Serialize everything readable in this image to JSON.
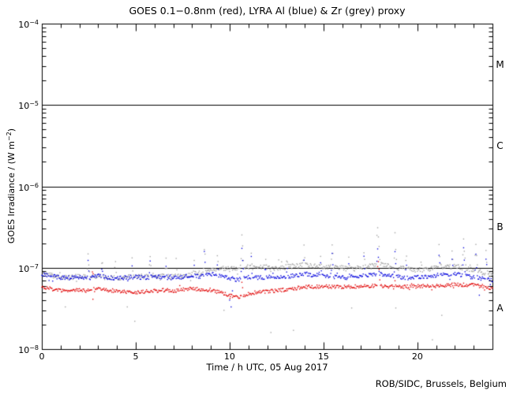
{
  "footer": "ROB/SIDC, Brussels, Belgium",
  "chart_data": {
    "type": "scatter",
    "title": "GOES 0.1−0.8nm (red), LYRA Al (blue) & Zr (grey) proxy",
    "xlabel": "Time / h UTC, 05 Aug 2017",
    "ylabel": {
      "prefix": "GOES Irradiance / (W m",
      "sup": "−2",
      "suffix": ")"
    },
    "background": "#ffffff",
    "axis_color": "#000000",
    "grid": false,
    "legend": "encoded in title (red/blue/grey)",
    "x_range": [
      0,
      24
    ],
    "x_major_ticks": [
      0,
      5,
      10,
      15,
      20
    ],
    "x_minor_step": 1,
    "y_log_range": [
      -8,
      -4
    ],
    "y_ticks": [
      {
        "base": "10",
        "exp_label": "−4",
        "exp": -4
      },
      {
        "base": "10",
        "exp_label": "−5",
        "exp": -5
      },
      {
        "base": "10",
        "exp_label": "−6",
        "exp": -6
      },
      {
        "base": "10",
        "exp_label": "−7",
        "exp": -7
      },
      {
        "base": "10",
        "exp_label": "−8",
        "exp": -8
      }
    ],
    "hlines": [
      1e-05,
      1e-06,
      1e-07
    ],
    "class_labels": [
      {
        "label": "M",
        "value": 3.16e-05
      },
      {
        "label": "C",
        "value": 3.16e-06
      },
      {
        "label": "B",
        "value": 3.16e-07
      },
      {
        "label": "A",
        "value": 3.16e-08
      }
    ],
    "value_scale": 1e-08,
    "points_per_hour": 26,
    "seed": 42,
    "series": [
      {
        "name": "GOES 0.1−0.8nm",
        "color": "#e10000",
        "noise_dex": 0.022,
        "trend": [
          [
            0,
            5.7
          ],
          [
            0.5,
            5.5
          ],
          [
            1,
            5.3
          ],
          [
            1.5,
            5.2
          ],
          [
            2,
            5.3
          ],
          [
            2.5,
            5.2
          ],
          [
            3,
            5.4
          ],
          [
            3.5,
            5.3
          ],
          [
            4,
            5.2
          ],
          [
            4.5,
            5.0
          ],
          [
            5,
            4.9
          ],
          [
            5.5,
            5.1
          ],
          [
            6,
            5.2
          ],
          [
            6.5,
            5.3
          ],
          [
            7,
            5.2
          ],
          [
            7.5,
            5.4
          ],
          [
            8,
            5.5
          ],
          [
            8.5,
            5.4
          ],
          [
            9,
            5.2
          ],
          [
            9.5,
            5.0
          ],
          [
            10,
            4.6
          ],
          [
            10.3,
            4.3
          ],
          [
            10.7,
            4.5
          ],
          [
            11,
            4.8
          ],
          [
            11.5,
            5.0
          ],
          [
            12,
            5.1
          ],
          [
            12.5,
            5.2
          ],
          [
            13,
            5.4
          ],
          [
            13.5,
            5.6
          ],
          [
            14,
            5.8
          ],
          [
            15,
            5.9
          ],
          [
            16,
            5.8
          ],
          [
            17,
            5.9
          ],
          [
            18,
            6.0
          ],
          [
            19,
            5.8
          ],
          [
            20,
            5.9
          ],
          [
            21,
            6.0
          ],
          [
            22,
            6.2
          ],
          [
            23,
            6.1
          ],
          [
            23.5,
            5.9
          ],
          [
            24,
            5.6
          ]
        ],
        "spikes": [
          [
            2.7,
            10.5
          ],
          [
            10.65,
            7.5
          ],
          [
            17.9,
            15
          ],
          [
            18.8,
            8
          ],
          [
            22.45,
            7.5
          ],
          [
            23.1,
            7.2
          ]
        ]
      },
      {
        "name": "LYRA Al proxy",
        "color": "#0000dd",
        "noise_dex": 0.025,
        "trend": [
          [
            0,
            8.2
          ],
          [
            0.5,
            7.9
          ],
          [
            1,
            7.6
          ],
          [
            1.5,
            7.5
          ],
          [
            2,
            7.7
          ],
          [
            2.5,
            7.5
          ],
          [
            3,
            7.9
          ],
          [
            3.5,
            7.6
          ],
          [
            4,
            7.4
          ],
          [
            4.5,
            7.6
          ],
          [
            5,
            7.7
          ],
          [
            5.5,
            7.5
          ],
          [
            6,
            7.8
          ],
          [
            6.5,
            7.6
          ],
          [
            7,
            7.5
          ],
          [
            7.5,
            7.7
          ],
          [
            8,
            8.0
          ],
          [
            8.5,
            7.8
          ],
          [
            9,
            8.4
          ],
          [
            9.5,
            8.0
          ],
          [
            10,
            7.5
          ],
          [
            10.3,
            7.1
          ],
          [
            10.7,
            7.4
          ],
          [
            11,
            7.7
          ],
          [
            11.5,
            7.5
          ],
          [
            12,
            7.7
          ],
          [
            12.5,
            7.5
          ],
          [
            13,
            7.8
          ],
          [
            13.5,
            8.0
          ],
          [
            14,
            8.4
          ],
          [
            14.5,
            8.1
          ],
          [
            15,
            7.9
          ],
          [
            15.5,
            7.7
          ],
          [
            16,
            7.5
          ],
          [
            16.5,
            7.7
          ],
          [
            17,
            8.0
          ],
          [
            17.5,
            8.2
          ],
          [
            18,
            8.4
          ],
          [
            18.5,
            8.0
          ],
          [
            19,
            7.7
          ],
          [
            19.5,
            7.5
          ],
          [
            20,
            7.6
          ],
          [
            20.5,
            7.8
          ],
          [
            21,
            8.1
          ],
          [
            21.5,
            8.3
          ],
          [
            22,
            8.4
          ],
          [
            22.5,
            8.0
          ],
          [
            23,
            7.6
          ],
          [
            23.5,
            7.3
          ],
          [
            24,
            6.9
          ]
        ],
        "spikes": [
          [
            2.45,
            13.5
          ],
          [
            3.2,
            12
          ],
          [
            4.8,
            11.5
          ],
          [
            5.75,
            13
          ],
          [
            6.6,
            11.5
          ],
          [
            8.1,
            12
          ],
          [
            8.65,
            15
          ],
          [
            9.35,
            12
          ],
          [
            10.65,
            19
          ],
          [
            11.15,
            13
          ],
          [
            11.9,
            12
          ],
          [
            13.05,
            11.5
          ],
          [
            13.95,
            14
          ],
          [
            14.85,
            12
          ],
          [
            15.45,
            15
          ],
          [
            16.35,
            12
          ],
          [
            17.15,
            13
          ],
          [
            17.87,
            21
          ],
          [
            18.8,
            16
          ],
          [
            19.4,
            12
          ],
          [
            21.15,
            15
          ],
          [
            21.85,
            13
          ],
          [
            22.45,
            18
          ],
          [
            23.1,
            16
          ],
          [
            23.65,
            14.5
          ]
        ]
      },
      {
        "name": "LYRA Zr proxy",
        "color": "#a0a0a0",
        "noise_dex": 0.03,
        "trend": [
          [
            0,
            8.4
          ],
          [
            0.5,
            8.0
          ],
          [
            1,
            7.7
          ],
          [
            1.5,
            7.6
          ],
          [
            2,
            7.8
          ],
          [
            2.5,
            7.6
          ],
          [
            3,
            8.0
          ],
          [
            3.5,
            7.7
          ],
          [
            4,
            7.5
          ],
          [
            4.5,
            7.7
          ],
          [
            5,
            7.9
          ],
          [
            5.5,
            7.7
          ],
          [
            6,
            8.0
          ],
          [
            6.5,
            7.8
          ],
          [
            7,
            7.7
          ],
          [
            7.5,
            8.0
          ],
          [
            8,
            8.3
          ],
          [
            8.5,
            8.6
          ],
          [
            9,
            9.4
          ],
          [
            9.5,
            9.8
          ],
          [
            10,
            9.6
          ],
          [
            10.5,
            10.0
          ],
          [
            11,
            10.4
          ],
          [
            11.5,
            10.0
          ],
          [
            12,
            10.2
          ],
          [
            12.5,
            9.8
          ],
          [
            13,
            10.2
          ],
          [
            13.5,
            10.5
          ],
          [
            14,
            10.8
          ],
          [
            14.5,
            10.4
          ],
          [
            15,
            10.1
          ],
          [
            15.5,
            10.4
          ],
          [
            16,
            9.9
          ],
          [
            16.5,
            9.6
          ],
          [
            17,
            10.2
          ],
          [
            17.5,
            10.6
          ],
          [
            18,
            11.0
          ],
          [
            18.5,
            10.4
          ],
          [
            19,
            9.9
          ],
          [
            19.5,
            9.6
          ],
          [
            20,
            9.3
          ],
          [
            20.5,
            9.6
          ],
          [
            21,
            10.0
          ],
          [
            21.5,
            10.3
          ],
          [
            22,
            10.4
          ],
          [
            22.5,
            10.0
          ],
          [
            23,
            9.2
          ],
          [
            23.5,
            8.7
          ],
          [
            24,
            8.2
          ]
        ],
        "spikes": [
          [
            2.45,
            17
          ],
          [
            3.2,
            14.5
          ],
          [
            3.9,
            13.5
          ],
          [
            4.8,
            14
          ],
          [
            5.75,
            16
          ],
          [
            6.6,
            14
          ],
          [
            7.15,
            13
          ],
          [
            8.1,
            14.5
          ],
          [
            8.65,
            19
          ],
          [
            9.35,
            15
          ],
          [
            10.65,
            24
          ],
          [
            11.15,
            16
          ],
          [
            11.9,
            15.5
          ],
          [
            12.6,
            14.5
          ],
          [
            13.05,
            15
          ],
          [
            13.95,
            20
          ],
          [
            14.85,
            15.5
          ],
          [
            15.45,
            21.5
          ],
          [
            16.35,
            15
          ],
          [
            17.15,
            16.5
          ],
          [
            17.87,
            37
          ],
          [
            18.8,
            26
          ],
          [
            19.4,
            15.5
          ],
          [
            20.2,
            14.5
          ],
          [
            21.15,
            21
          ],
          [
            21.85,
            16.5
          ],
          [
            22.45,
            26
          ],
          [
            23.1,
            22
          ],
          [
            23.65,
            17
          ]
        ]
      }
    ],
    "outliers": [
      [
        2,
        1.25,
        3.3
      ],
      [
        2,
        4.55,
        3.3
      ],
      [
        2,
        4.95,
        2.2
      ],
      [
        2,
        9.7,
        3.0
      ],
      [
        2,
        12.2,
        1.6
      ],
      [
        2,
        13.4,
        1.7
      ],
      [
        2,
        16.5,
        3.2
      ],
      [
        2,
        18.85,
        3.2
      ],
      [
        2,
        20.8,
        1.3
      ],
      [
        2,
        21.3,
        2.6
      ],
      [
        1,
        10.0,
        4.0
      ],
      [
        1,
        10.08,
        3.3
      ],
      [
        1,
        10.15,
        5.2
      ],
      [
        1,
        23.3,
        4.6
      ],
      [
        0,
        10.02,
        4.2
      ],
      [
        0,
        2.72,
        4.1
      ]
    ]
  }
}
